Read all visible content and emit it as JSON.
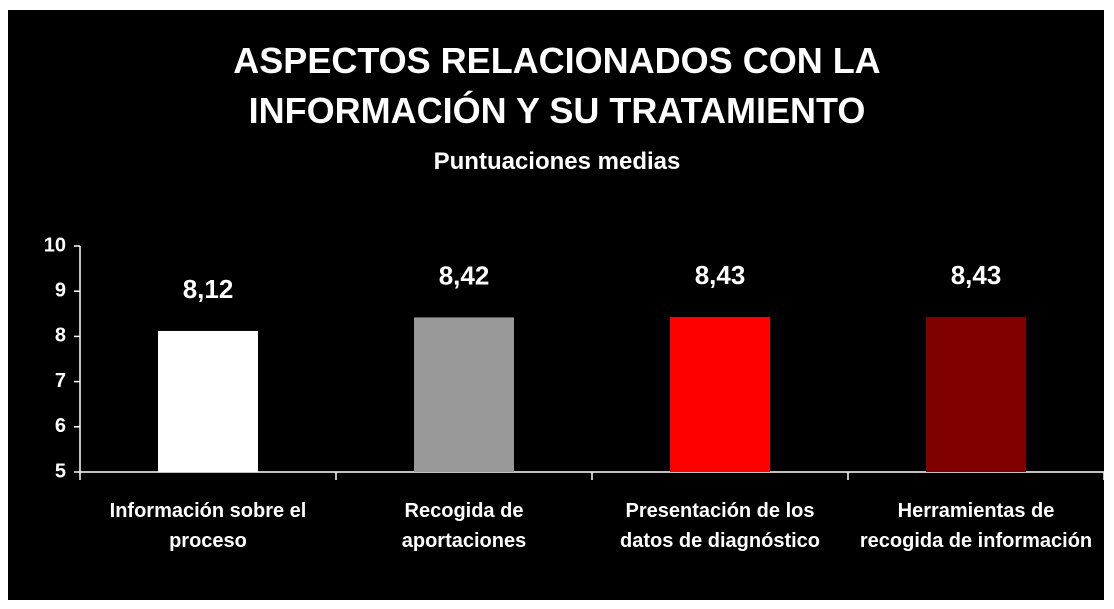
{
  "chart_data": {
    "type": "bar",
    "title": "ASPECTOS RELACIONADOS CON LA INFORMACIÓN Y SU TRATAMIENTO",
    "subtitle": "Puntuaciones medias",
    "categories": [
      "Información sobre el proceso",
      "Recogida de aportaciones",
      "Presentación de los datos de diagnóstico",
      "Herramientas de recogida de información"
    ],
    "values": [
      8.12,
      8.42,
      8.43,
      8.43
    ],
    "value_labels": [
      "8,12",
      "8,42",
      "8,43",
      "8,43"
    ],
    "colors": [
      "#ffffff",
      "#999999",
      "#ff0000",
      "#800000"
    ],
    "ylim": [
      5,
      10
    ],
    "yticks": [
      5,
      6,
      7,
      8,
      9,
      10
    ]
  }
}
